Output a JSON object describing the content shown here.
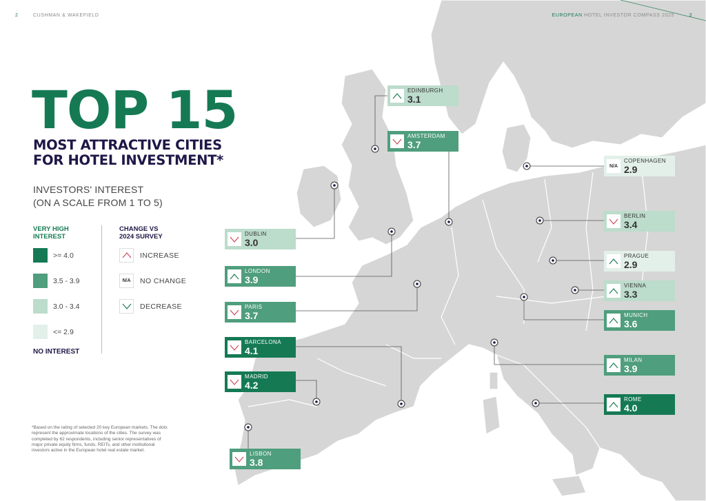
{
  "header": {
    "page_left": "2",
    "brand": "CUSHMAN & WAKEFIELD",
    "title_accent": "EUROPEAN",
    "title_rest": " HOTEL INVESTOR COMPASS 2025",
    "page_right": "3"
  },
  "title": {
    "big": "TOP 15",
    "line1": "MOST ATTRACTIVE CITIES",
    "line2": "FOR HOTEL INVESTMENT*"
  },
  "scale": {
    "line1": "INVESTORS' INTEREST",
    "line2": "(ON A SCALE FROM 1 TO 5)"
  },
  "legend": {
    "interest_head1": "VERY HIGH",
    "interest_head2": "INTEREST",
    "levels": [
      {
        "label": ">= 4.0",
        "color": "#157a54"
      },
      {
        "label": "3.5 - 3.9",
        "color": "#4f9e7d"
      },
      {
        "label": "3.0 - 3.4",
        "color": "#bcdccc"
      },
      {
        "label": "<= 2.9",
        "color": "#e3f0ea"
      }
    ],
    "no_interest": "NO INTEREST",
    "change_head1": "CHANGE VS",
    "change_head2": "2024 SURVEY",
    "increase": "INCREASE",
    "no_change_icon": "N/A",
    "no_change": "NO CHANGE",
    "decrease": "DECREASE"
  },
  "footnote": "*Based on the rating of selected 20 key European markets. The dots represent the approximate locations of the cities. The survey was completed by 62 respondents, including senior representatives of major private equity firms, funds, REITs, and other institutional investors active in the European hotel real estate market.",
  "colors": {
    "increase": "#c94a5a",
    "decrease": "#1a7a55",
    "accent": "#157a54",
    "navy": "#1f1747"
  },
  "cities": [
    {
      "name": "EDINBURGH",
      "score": "3.1",
      "change": "increase"
    },
    {
      "name": "AMSTERDAM",
      "score": "3.7",
      "change": "decrease"
    },
    {
      "name": "COPENHAGEN",
      "score": "2.9",
      "change": "none"
    },
    {
      "name": "BERLIN",
      "score": "3.4",
      "change": "decrease"
    },
    {
      "name": "DUBLIN",
      "score": "3.0",
      "change": "decrease"
    },
    {
      "name": "PRAGUE",
      "score": "2.9",
      "change": "increase"
    },
    {
      "name": "LONDON",
      "score": "3.9",
      "change": "increase"
    },
    {
      "name": "VIENNA",
      "score": "3.3",
      "change": "increase"
    },
    {
      "name": "PARIS",
      "score": "3.7",
      "change": "decrease"
    },
    {
      "name": "MUNICH",
      "score": "3.6",
      "change": "increase"
    },
    {
      "name": "BARCELONA",
      "score": "4.1",
      "change": "decrease"
    },
    {
      "name": "MILAN",
      "score": "3.9",
      "change": "increase"
    },
    {
      "name": "MADRID",
      "score": "4.2",
      "change": "decrease"
    },
    {
      "name": "ROME",
      "score": "4.0",
      "change": "increase"
    },
    {
      "name": "LISBON",
      "score": "3.8",
      "change": "decrease"
    }
  ]
}
